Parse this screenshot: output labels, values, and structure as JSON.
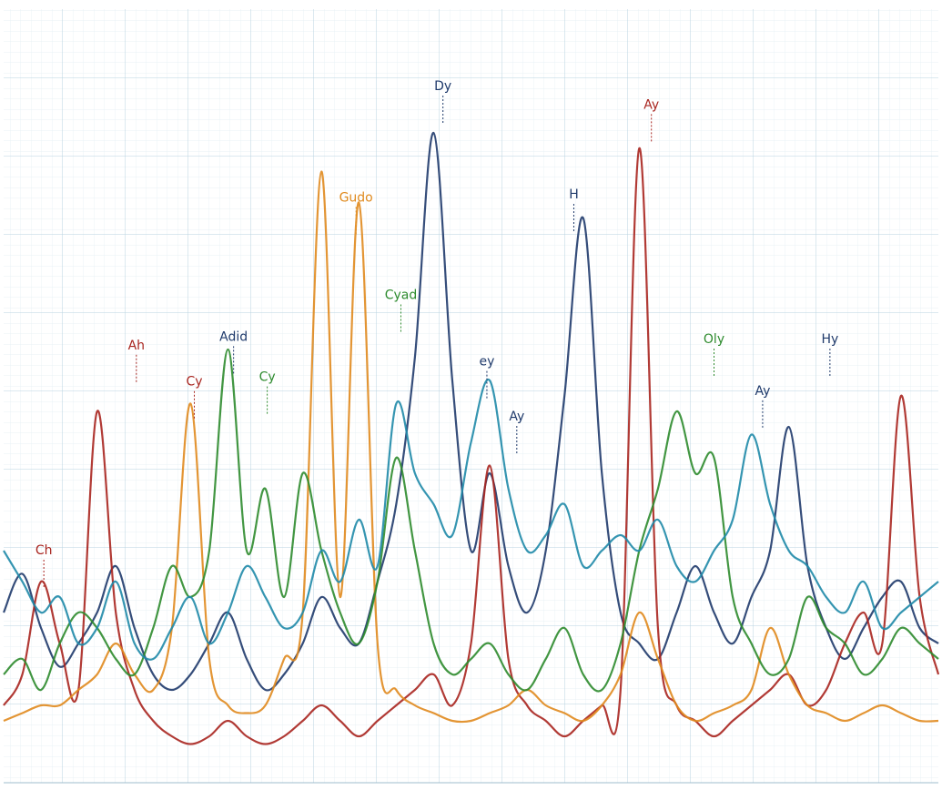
{
  "chart_data": {
    "type": "line",
    "x": [
      0,
      2,
      4,
      6,
      8,
      10,
      12,
      14,
      16,
      18,
      20,
      22,
      24,
      26,
      28,
      30,
      32,
      34,
      36,
      38,
      40,
      42,
      44,
      46,
      48,
      50,
      52,
      54,
      56,
      58,
      60,
      62,
      64,
      66,
      68,
      70,
      72,
      74,
      76,
      78,
      80,
      82,
      84,
      86,
      88,
      90,
      92,
      94,
      96,
      98,
      100
    ],
    "xlim": [
      0,
      100
    ],
    "ylim": [
      0,
      100
    ],
    "grid": true,
    "series": [
      {
        "color": "#1f3a6b",
        "values": [
          22,
          27,
          20,
          15,
          18,
          22,
          28,
          20,
          14,
          12,
          14,
          18,
          22,
          16,
          12,
          14,
          18,
          24,
          20,
          18,
          26,
          36,
          55,
          84,
          52,
          30,
          40,
          28,
          22,
          30,
          50,
          73,
          40,
          22,
          18,
          16,
          22,
          28,
          22,
          18,
          24,
          30,
          46,
          28,
          20,
          16,
          20,
          24,
          26,
          20,
          18
        ]
      },
      {
        "color": "#a8251f",
        "values": [
          10,
          14,
          26,
          18,
          12,
          48,
          22,
          12,
          8,
          6,
          5,
          6,
          8,
          6,
          5,
          6,
          8,
          10,
          8,
          6,
          8,
          10,
          12,
          14,
          10,
          18,
          41,
          16,
          10,
          8,
          6,
          8,
          10,
          12,
          82,
          20,
          10,
          8,
          6,
          8,
          10,
          12,
          14,
          10,
          12,
          18,
          22,
          18,
          50,
          24,
          14
        ]
      },
      {
        "color": "#e08a1e",
        "values": [
          8,
          9,
          10,
          10,
          12,
          14,
          18,
          14,
          12,
          20,
          49,
          16,
          10,
          9,
          10,
          16,
          22,
          79,
          24,
          75,
          18,
          12,
          10,
          9,
          8,
          8,
          9,
          10,
          12,
          10,
          9,
          8,
          10,
          14,
          22,
          16,
          10,
          8,
          9,
          10,
          12,
          20,
          14,
          10,
          9,
          8,
          9,
          10,
          9,
          8,
          8
        ]
      },
      {
        "color": "#2e8b2e",
        "values": [
          14,
          16,
          12,
          18,
          22,
          20,
          16,
          14,
          20,
          28,
          24,
          30,
          56,
          30,
          38,
          24,
          40,
          30,
          22,
          18,
          26,
          42,
          30,
          18,
          14,
          16,
          18,
          14,
          12,
          16,
          20,
          14,
          12,
          18,
          30,
          38,
          48,
          40,
          42,
          24,
          18,
          14,
          16,
          24,
          20,
          18,
          14,
          16,
          20,
          18,
          16
        ]
      },
      {
        "color": "#1f8aa8",
        "values": [
          30,
          26,
          22,
          24,
          18,
          20,
          26,
          18,
          16,
          20,
          24,
          18,
          22,
          28,
          24,
          20,
          22,
          30,
          26,
          34,
          28,
          49,
          40,
          36,
          32,
          44,
          52,
          38,
          30,
          32,
          36,
          28,
          30,
          32,
          30,
          34,
          28,
          26,
          30,
          34,
          45,
          36,
          30,
          28,
          24,
          22,
          26,
          20,
          22,
          24,
          26
        ]
      }
    ],
    "annotations": [
      {
        "text": "Dy",
        "x": 47,
        "y": 90,
        "color": "#1f3a6b"
      },
      {
        "text": "Ay",
        "x": 69.3,
        "y": 87.6,
        "color": "#a8251f"
      },
      {
        "text": "H",
        "x": 61,
        "y": 76,
        "color": "#1f3a6b"
      },
      {
        "text": "Gudo",
        "x": 37.7,
        "y": 75.6,
        "color": "#e08a1e"
      },
      {
        "text": "Cyad",
        "x": 42.5,
        "y": 63,
        "color": "#2e8b2e"
      },
      {
        "text": "Ah",
        "x": 14.2,
        "y": 56.5,
        "color": "#a8251f"
      },
      {
        "text": "Adid",
        "x": 24.6,
        "y": 57.6,
        "color": "#1f3a6b"
      },
      {
        "text": "Cy",
        "x": 20.4,
        "y": 51.8,
        "color": "#a8251f"
      },
      {
        "text": "Cy",
        "x": 28.2,
        "y": 52.4,
        "color": "#2e8b2e"
      },
      {
        "text": "Ch",
        "x": 4.3,
        "y": 30,
        "color": "#a8251f"
      },
      {
        "text": "ey",
        "x": 51.7,
        "y": 54.4,
        "color": "#1f3a6b"
      },
      {
        "text": "Ay",
        "x": 54.9,
        "y": 47.3,
        "color": "#1f3a6b"
      },
      {
        "text": "Oly",
        "x": 76,
        "y": 57.3,
        "color": "#2e8b2e"
      },
      {
        "text": "Ay",
        "x": 81.2,
        "y": 50.6,
        "color": "#1f3a6b"
      },
      {
        "text": "Hy",
        "x": 88.4,
        "y": 57.3,
        "color": "#1f3a6b"
      }
    ]
  }
}
